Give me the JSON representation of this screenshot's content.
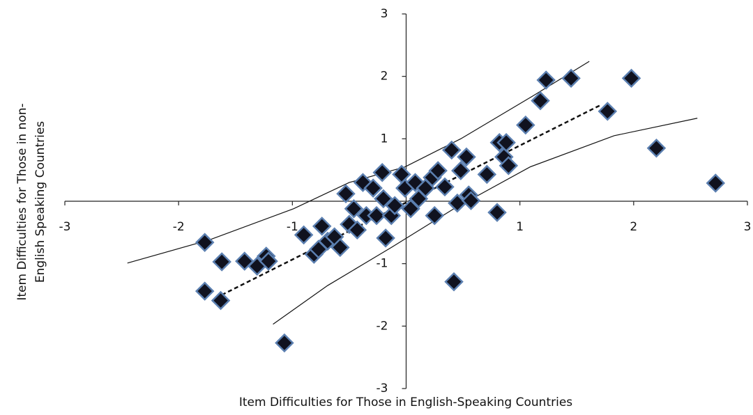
{
  "chart_data": {
    "type": "scatter",
    "xlabel": "Item Difficulties for Those in English-Speaking Countries",
    "ylabel": [
      "Item Difficulties for Those in non-",
      "English Speaking Countries"
    ],
    "xlim": [
      -3,
      3
    ],
    "ylim": [
      -3,
      3
    ],
    "xticks": [
      -3,
      -2,
      -1,
      1,
      2,
      3
    ],
    "yticks": [
      -3,
      -2,
      -1,
      1,
      2,
      3
    ],
    "series": [
      {
        "type": "scatter",
        "color": "#10121f",
        "stroke": "#5b7fb0",
        "x": [
          -1.77,
          -1.62,
          -1.77,
          -1.63,
          -1.42,
          -1.31,
          -1.23,
          -1.21,
          -1.07,
          -0.9,
          -0.81,
          -0.77,
          -0.74,
          -0.69,
          -0.63,
          -0.58,
          -0.53,
          -0.5,
          -0.46,
          -0.43,
          -0.38,
          -0.35,
          -0.29,
          -0.26,
          -0.21,
          -0.2,
          -0.18,
          -0.13,
          -0.1,
          -0.04,
          -0.01,
          0.04,
          0.08,
          0.11,
          0.17,
          0.23,
          0.25,
          0.28,
          0.34,
          0.4,
          0.42,
          0.45,
          0.48,
          0.53,
          0.55,
          0.57,
          0.71,
          0.8,
          0.82,
          0.86,
          0.9,
          0.88,
          1.05,
          1.18,
          1.23,
          1.45,
          1.77,
          1.98,
          2.2,
          2.72
        ],
        "y": [
          -0.66,
          -0.97,
          -1.44,
          -1.59,
          -0.96,
          -1.04,
          -0.88,
          -0.96,
          -2.27,
          -0.54,
          -0.85,
          -0.77,
          -0.4,
          -0.64,
          -0.57,
          -0.74,
          0.12,
          -0.37,
          -0.12,
          -0.46,
          0.3,
          -0.23,
          0.21,
          -0.23,
          0.46,
          0.04,
          -0.59,
          -0.23,
          -0.07,
          0.43,
          0.21,
          -0.12,
          0.3,
          0.04,
          0.21,
          0.38,
          -0.23,
          0.49,
          0.23,
          0.82,
          -1.29,
          -0.03,
          0.49,
          0.71,
          0.1,
          0.01,
          0.43,
          -0.18,
          0.94,
          0.71,
          0.57,
          0.94,
          1.22,
          1.61,
          1.94,
          1.97,
          1.44,
          1.97,
          0.85,
          0.29
        ]
      },
      {
        "type": "line",
        "color": "#111111",
        "dash": true,
        "x": [
          -1.62,
          1.72
        ],
        "y": [
          -1.5,
          1.55
        ]
      },
      {
        "type": "line",
        "color": "#111111",
        "dash": false,
        "x": [
          -2.45,
          -1.73,
          -0.99,
          -0.5,
          -0.01,
          0.48,
          1.09,
          1.61
        ],
        "y": [
          -0.99,
          -0.62,
          -0.12,
          0.3,
          0.55,
          1.0,
          1.66,
          2.24
        ]
      },
      {
        "type": "line",
        "color": "#111111",
        "dash": false,
        "x": [
          -1.17,
          -0.69,
          -0.13,
          0.42,
          1.09,
          1.83,
          2.56
        ],
        "y": [
          -1.97,
          -1.35,
          -0.74,
          -0.12,
          0.55,
          1.05,
          1.33
        ]
      }
    ]
  }
}
